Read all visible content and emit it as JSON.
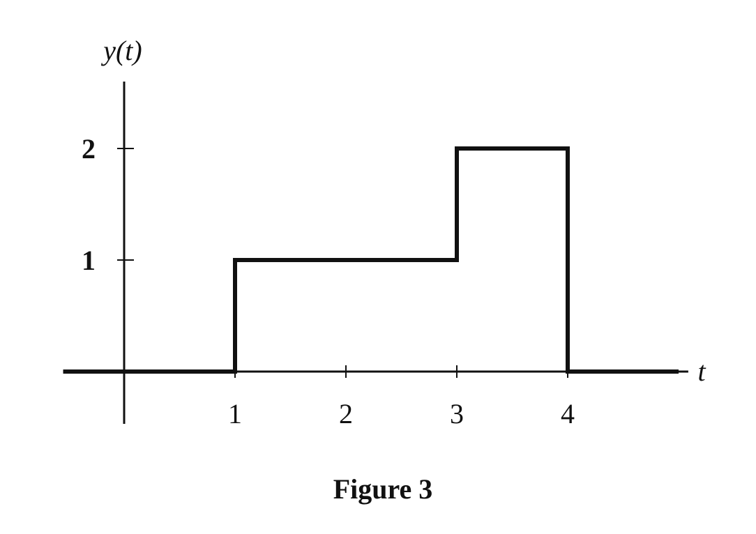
{
  "chart_data": {
    "type": "line",
    "step": true,
    "title": "",
    "caption": "Figure 3",
    "xlabel": "t",
    "ylabel": "y(t)",
    "x_ticks": [
      1,
      2,
      3,
      4
    ],
    "x_tick_labels": [
      "1",
      "2",
      "3",
      "4"
    ],
    "y_ticks": [
      1,
      2
    ],
    "y_tick_labels": [
      "1",
      "2"
    ],
    "xlim": [
      -0.55,
      5.1
    ],
    "ylim": [
      0,
      2.6
    ],
    "grid": false,
    "legend": "none",
    "line_color": "#111111",
    "series": [
      {
        "x": [
          -0.55,
          1,
          1,
          3,
          3,
          4,
          4,
          5.0
        ],
        "y": [
          0,
          0,
          1,
          1,
          2,
          2,
          0,
          0
        ]
      }
    ]
  }
}
